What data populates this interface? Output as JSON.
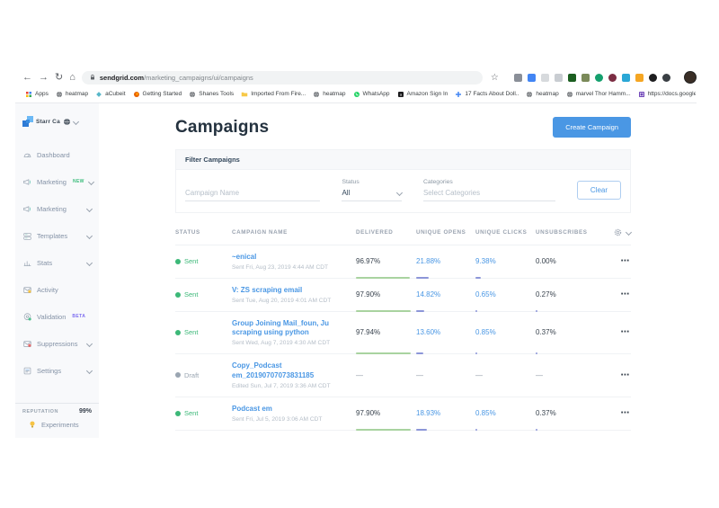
{
  "icons": {
    "back": "←",
    "forward": "→",
    "reload": "↻",
    "home": "⌂",
    "star": "☆",
    "row_menu": "⋯"
  },
  "colors": {
    "accent": "#4a97e4",
    "sent_green": "#3cb878",
    "draft_gray": "#9aa5b1",
    "bar_green": "#a9d3a0",
    "bar_purple": "#8c96d8"
  },
  "browser": {
    "url_domain": "sendgrid.com",
    "url_path": "/marketing_campaigns/ui/campaigns",
    "bookmarks": [
      {
        "label": "Apps",
        "icon": "apps"
      },
      {
        "label": "heatmap",
        "icon": "globe"
      },
      {
        "label": "aCubeit",
        "icon": "cube"
      },
      {
        "label": "Getting Started",
        "icon": "firefox"
      },
      {
        "label": "Shanes Tools",
        "icon": "globe"
      },
      {
        "label": "Imported From Fire...",
        "icon": "folder"
      },
      {
        "label": "heatmap",
        "icon": "globe"
      },
      {
        "label": "WhatsApp",
        "icon": "whatsapp"
      },
      {
        "label": "Amazon Sign In",
        "icon": "amazon"
      },
      {
        "label": "17 Facts About Doll..",
        "icon": "plus"
      },
      {
        "label": "heatmap",
        "icon": "globe"
      },
      {
        "label": "marvel Thor Hamm...",
        "icon": "globe"
      },
      {
        "label": "https://docs.google...",
        "icon": "docs"
      }
    ],
    "extensions": [
      {
        "color": "#8a8f98",
        "radius": "2px"
      },
      {
        "color": "#4285f4",
        "radius": "2px"
      },
      {
        "color": "#d7dadd",
        "radius": "2px"
      },
      {
        "color": "#c9cdd2",
        "radius": "2px"
      },
      {
        "color": "#1b5e20",
        "radius": "2px"
      },
      {
        "color": "#7b8a5a",
        "radius": "2px"
      },
      {
        "color": "#15a06e",
        "radius": "50%"
      },
      {
        "color": "#7b2d43",
        "radius": "50%"
      },
      {
        "color": "#2aa7d6",
        "radius": "2px"
      },
      {
        "color": "#f5a623",
        "radius": "2px"
      },
      {
        "color": "#1d1d1f",
        "radius": "50%"
      },
      {
        "color": "#3a3f44",
        "radius": "50%"
      }
    ]
  },
  "sidebar": {
    "account_name": "Starr Ca",
    "items": [
      {
        "label": "Dashboard",
        "icon": "gauge"
      },
      {
        "label": "Marketing",
        "icon": "megaphone",
        "badge": "NEW",
        "badge_color": "#3dbd7d",
        "chevron": true
      },
      {
        "label": "Marketing",
        "icon": "megaphone",
        "chevron": true
      },
      {
        "label": "Templates",
        "icon": "templates",
        "chevron": true
      },
      {
        "label": "Stats",
        "icon": "stats",
        "chevron": true
      },
      {
        "label": "Activity",
        "icon": "activity"
      },
      {
        "label": "Validation",
        "icon": "validation",
        "badge": "BETA",
        "badge_color": "#7d6ef0"
      },
      {
        "label": "Suppressions",
        "icon": "suppressions",
        "chevron": true
      },
      {
        "label": "Settings",
        "icon": "settings",
        "chevron": true
      }
    ],
    "reputation_label": "REPUTATION",
    "reputation_value": "99%",
    "experiments_label": "Experiments"
  },
  "main": {
    "title": "Campaigns",
    "create_button": "Create Campaign",
    "filter": {
      "heading": "Filter Campaigns",
      "campaign_name_placeholder": "Campaign Name",
      "status_label": "Status",
      "status_value": "All",
      "categories_label": "Categories",
      "categories_placeholder": "Select Categories",
      "clear_button": "Clear"
    },
    "table": {
      "headers": [
        "STATUS",
        "CAMPAIGN NAME",
        "DELIVERED",
        "UNIQUE OPENS",
        "UNIQUE CLICKS",
        "UNSUBSCRIBES"
      ],
      "rows": [
        {
          "status": "Sent",
          "status_color": "#3cb878",
          "name": "~enical",
          "meta": "Sent Fri, Aug 23, 2019 4:44 AM CDT",
          "delivered": "96.97%",
          "opens": "21.88%",
          "clicks": "9.38%",
          "unsubscribes": "0.00%",
          "bars": {
            "delivered": 96.97,
            "opens": 21.88,
            "clicks": 9.38,
            "unsubscribes": 0
          }
        },
        {
          "status": "Sent",
          "status_color": "#3cb878",
          "name": "V: ZS scraping email",
          "meta": "Sent Tue, Aug 20, 2019 4:01 AM CDT",
          "delivered": "97.90%",
          "opens": "14.82%",
          "clicks": "0.65%",
          "unsubscribes": "0.27%",
          "bars": {
            "delivered": 97.9,
            "opens": 14.82,
            "clicks": 0.65,
            "unsubscribes": 0.27
          }
        },
        {
          "status": "Sent",
          "status_color": "#3cb878",
          "name": "Group Joining Mail_foun, Ju scraping using python",
          "meta": "Sent Wed, Aug 7, 2019 4:30 AM CDT",
          "delivered": "97.94%",
          "opens": "13.60%",
          "clicks": "0.85%",
          "unsubscribes": "0.37%",
          "bars": {
            "delivered": 97.94,
            "opens": 13.6,
            "clicks": 0.85,
            "unsubscribes": 0.37
          }
        },
        {
          "status": "Draft",
          "status_color": "#9aa5b1",
          "name": "Copy_Podcast em_20190707073831185",
          "meta": "Edited Sun, Jul 7, 2019 3:36 AM CDT",
          "delivered": "—",
          "opens": "—",
          "clicks": "—",
          "unsubscribes": "—",
          "bars": {
            "delivered": null,
            "opens": null,
            "clicks": null,
            "unsubscribes": null
          }
        },
        {
          "status": "Sent",
          "status_color": "#3cb878",
          "name": "Podcast em",
          "meta": "Sent Fri, Jul 5, 2019 3:06 AM CDT",
          "delivered": "97.90%",
          "opens": "18.93%",
          "clicks": "0.85%",
          "unsubscribes": "0.37%",
          "bars": {
            "delivered": 97.9,
            "opens": 18.93,
            "clicks": 0.85,
            "unsubscribes": 0.37
          }
        }
      ]
    }
  }
}
